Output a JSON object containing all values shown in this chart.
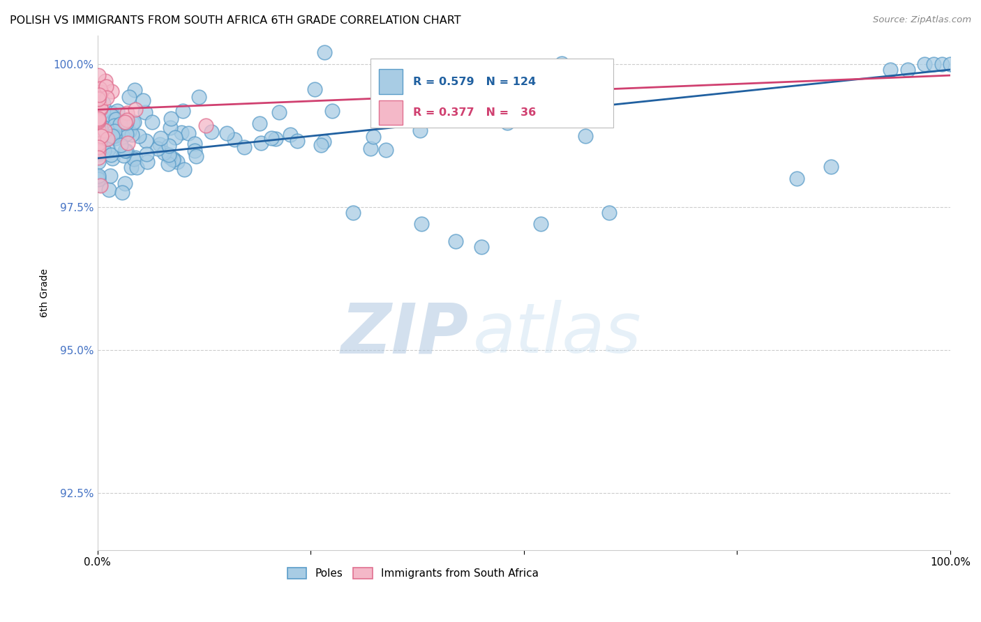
{
  "title": "POLISH VS IMMIGRANTS FROM SOUTH AFRICA 6TH GRADE CORRELATION CHART",
  "source": "Source: ZipAtlas.com",
  "ylabel": "6th Grade",
  "xlim": [
    0.0,
    1.0
  ],
  "ylim": [
    0.915,
    1.005
  ],
  "yticks": [
    0.925,
    0.95,
    0.975,
    1.0
  ],
  "ytick_labels": [
    "92.5%",
    "95.0%",
    "97.5%",
    "100.0%"
  ],
  "blue_R": 0.579,
  "blue_N": 124,
  "pink_R": 0.377,
  "pink_N": 36,
  "blue_fill": "#a8cce4",
  "blue_edge": "#5b9dc9",
  "pink_fill": "#f4b8c8",
  "pink_edge": "#e07090",
  "blue_line_color": "#2060a0",
  "pink_line_color": "#d04070",
  "legend_blue_label": "Poles",
  "legend_pink_label": "Immigrants from South Africa",
  "watermark_zip": "ZIP",
  "watermark_atlas": "atlas",
  "grid_color": "#cccccc",
  "ytick_color": "#4472c4"
}
